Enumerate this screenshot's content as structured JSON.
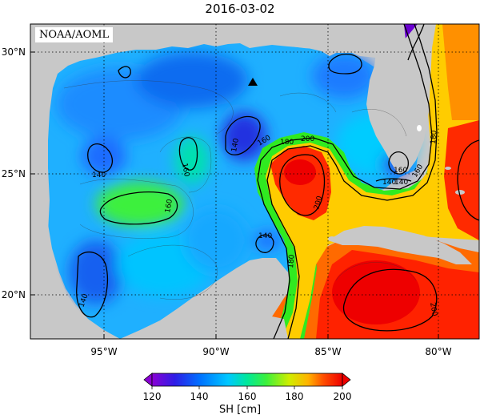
{
  "title": "2016-03-02",
  "credit": "NOAA/AOML",
  "lat_labels": [
    "30°N",
    "25°N",
    "20°N"
  ],
  "lon_labels": [
    "95°W",
    "90°W",
    "85°W",
    "80°W"
  ],
  "contour_labels": [
    "140",
    "160",
    "140",
    "160",
    "180",
    "200",
    "160",
    "180",
    "140",
    "160",
    "140",
    "200",
    "140",
    "180",
    "140",
    "160",
    "200"
  ],
  "colorbar": {
    "ticks": [
      "120",
      "140",
      "160",
      "180",
      "200"
    ],
    "label": "SH [cm]",
    "colors": [
      "#8a00d4",
      "#2e1de6",
      "#0070ff",
      "#00c8ff",
      "#00e89a",
      "#3cf03c",
      "#cfee00",
      "#ffb300",
      "#ff4e00",
      "#ee0000"
    ]
  },
  "colors": {
    "land": "#c8c8c8",
    "ocean_mid": "#00ccee",
    "frame": "#000000"
  },
  "marker": "station-triangle"
}
